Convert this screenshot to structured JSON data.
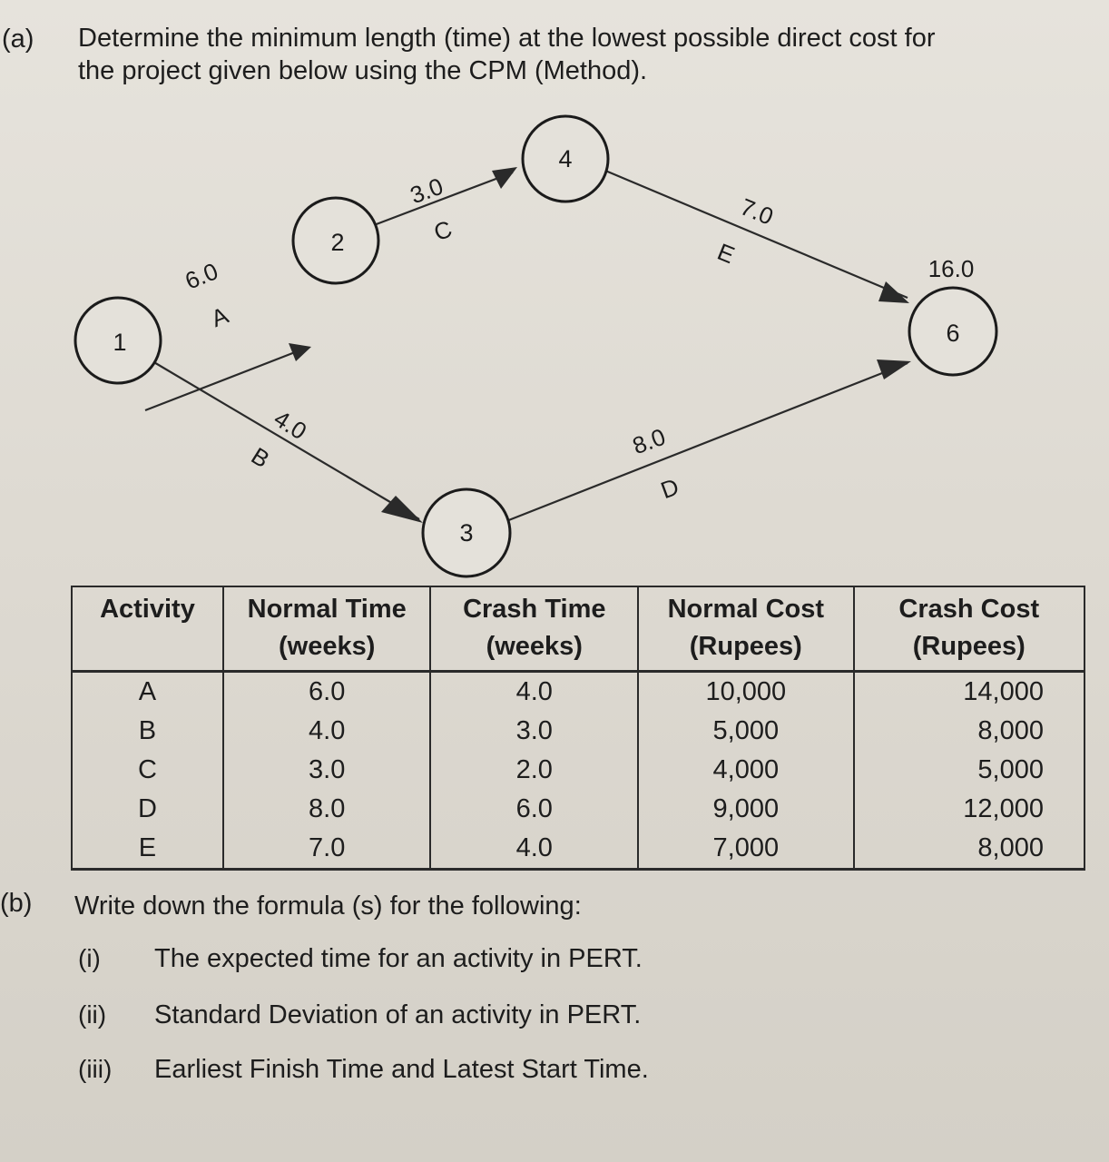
{
  "part_a": {
    "label": "(a)",
    "line1": "Determine the minimum length (time) at the lowest possible direct cost for",
    "line2": "the project given below using the CPM (Method)."
  },
  "network": {
    "nodes": [
      {
        "id": "1",
        "label": "1"
      },
      {
        "id": "2",
        "label": "2"
      },
      {
        "id": "3",
        "label": "3"
      },
      {
        "id": "4",
        "label": "4"
      },
      {
        "id": "6",
        "label": "6"
      }
    ],
    "edges": [
      {
        "from": "1",
        "to": "2",
        "activity": "A",
        "duration": "6.0"
      },
      {
        "from": "1",
        "to": "3",
        "activity": "B",
        "duration": "4.0"
      },
      {
        "from": "2",
        "to": "4",
        "activity": "C",
        "duration": "3.0"
      },
      {
        "from": "3",
        "to": "6",
        "activity": "D",
        "duration": "8.0"
      },
      {
        "from": "4",
        "to": "6",
        "activity": "E",
        "duration": "7.0"
      }
    ],
    "total_duration": "16.0"
  },
  "table": {
    "headers": [
      {
        "line1": "Activity",
        "line2": ""
      },
      {
        "line1": "Normal Time",
        "line2": "(weeks)"
      },
      {
        "line1": "Crash Time",
        "line2": "(weeks)"
      },
      {
        "line1": "Normal Cost",
        "line2": "(Rupees)"
      },
      {
        "line1": "Crash Cost",
        "line2": "(Rupees)"
      }
    ],
    "rows": [
      {
        "activity": "A",
        "normal_time": "6.0",
        "crash_time": "4.0",
        "normal_cost": "10,000",
        "crash_cost": "14,000"
      },
      {
        "activity": "B",
        "normal_time": "4.0",
        "crash_time": "3.0",
        "normal_cost": "5,000",
        "crash_cost": "8,000"
      },
      {
        "activity": "C",
        "normal_time": "3.0",
        "crash_time": "2.0",
        "normal_cost": "4,000",
        "crash_cost": "5,000"
      },
      {
        "activity": "D",
        "normal_time": "8.0",
        "crash_time": "6.0",
        "normal_cost": "9,000",
        "crash_cost": "12,000"
      },
      {
        "activity": "E",
        "normal_time": "7.0",
        "crash_time": "4.0",
        "normal_cost": "7,000",
        "crash_cost": "8,000"
      }
    ]
  },
  "part_b": {
    "label": "(b)",
    "text": "Write down the formula (s) for the following:",
    "items": [
      {
        "label": "(i)",
        "text": "The expected time for an activity in PERT."
      },
      {
        "label": "(ii)",
        "text": "Standard Deviation of an activity in PERT."
      },
      {
        "label": "(iii)",
        "text": "Earliest Finish Time and Latest Start Time."
      }
    ]
  }
}
